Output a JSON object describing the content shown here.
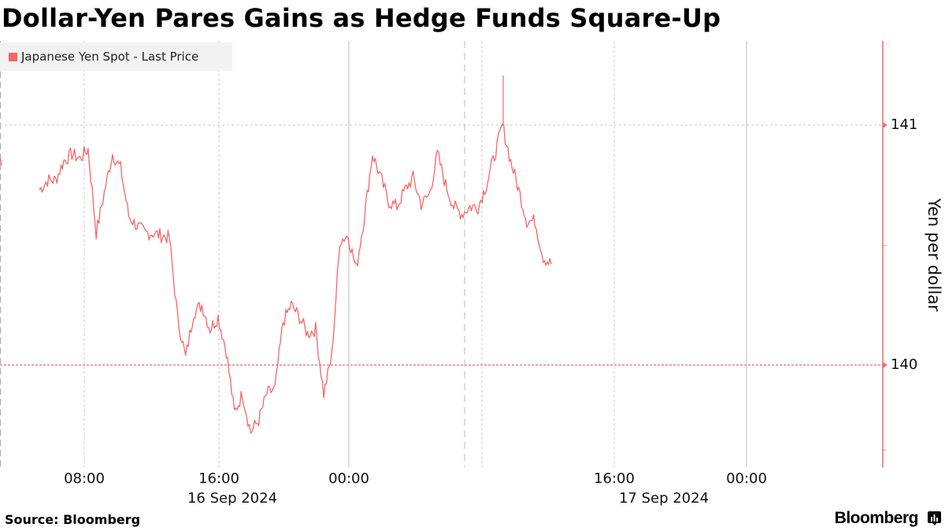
{
  "title": "Dollar-Yen Pares Gains as Hedge Funds Square-Up",
  "legend": {
    "label": "Japanese Yen Spot - Last Price",
    "color": "#f76565"
  },
  "x_axis": {
    "ticks": [
      {
        "label": "08:00",
        "x": 107
      },
      {
        "label": "16:00",
        "x": 278
      },
      {
        "label": "00:00",
        "x": 443
      },
      {
        "label": "16:00",
        "x": 780
      },
      {
        "label": "00:00",
        "x": 948
      }
    ],
    "dates": [
      {
        "label": "16 Sep 2024",
        "x": 295
      },
      {
        "label": "17 Sep 2024",
        "x": 843
      }
    ]
  },
  "y_axis": {
    "title": "Yen per dollar",
    "ticks": [
      {
        "label": "141",
        "value": 141
      },
      {
        "label": "140",
        "value": 140
      }
    ]
  },
  "footer": {
    "source": "Source: Bloomberg",
    "brand": "Bloomberg"
  },
  "chart_data": {
    "type": "line",
    "title": "Dollar-Yen Pares Gains as Hedge Funds Square-Up",
    "xlabel": "",
    "ylabel": "Yen per dollar",
    "ylim": [
      139.57,
      141.35
    ],
    "legend": [
      "Japanese Yen Spot - Last Price"
    ],
    "legend_position": "top-left",
    "grid": true,
    "reference_line": {
      "value": 140,
      "style": "red dashed"
    },
    "x_tick_labels": [
      "08:00",
      "16:00",
      "00:00",
      "16:00",
      "00:00"
    ],
    "x_date_labels": [
      "16 Sep 2024",
      "17 Sep 2024"
    ],
    "series": [
      {
        "name": "Japanese Yen Spot - Last Price",
        "x": [
          "16 Sep 05:00",
          "05:30",
          "06:00",
          "06:30",
          "07:00",
          "07:30",
          "08:00",
          "08:30",
          "09:00",
          "09:30",
          "10:00",
          "10:30",
          "11:00",
          "11:30",
          "12:00",
          "12:30",
          "13:00",
          "13:30",
          "14:00",
          "14:30",
          "15:00",
          "15:30",
          "16:00",
          "16:30",
          "17:00",
          "17:30",
          "18:00",
          "18:30",
          "19:00",
          "19:30",
          "20:00",
          "20:30",
          "21:00",
          "21:30",
          "22:00",
          "22:30",
          "23:00",
          "23:30",
          "17 Sep 00:00",
          "00:30",
          "01:00",
          "01:30",
          "02:00",
          "02:30",
          "03:00",
          "03:30",
          "04:00",
          "04:30",
          "05:00",
          "05:30",
          "06:00",
          "06:30",
          "07:00",
          "07:30",
          "08:00",
          "08:30",
          "09:00",
          "09:30",
          "10:00",
          "10:30",
          "11:00",
          "11:30",
          "12:00",
          "12:30"
        ],
        "values": [
          140.73,
          140.77,
          140.77,
          140.85,
          140.88,
          140.86,
          140.9,
          140.55,
          140.72,
          140.88,
          140.82,
          140.62,
          140.58,
          140.55,
          140.55,
          140.54,
          140.53,
          140.2,
          140.03,
          140.22,
          140.25,
          140.15,
          140.2,
          140.06,
          139.8,
          139.88,
          139.72,
          139.77,
          139.88,
          139.9,
          140.18,
          140.25,
          140.2,
          140.13,
          140.15,
          139.88,
          140.04,
          140.52,
          140.54,
          140.4,
          140.62,
          140.88,
          140.78,
          140.68,
          140.66,
          140.73,
          140.78,
          140.67,
          140.71,
          140.88,
          140.75,
          140.66,
          140.63,
          140.66,
          140.66,
          140.75,
          140.87,
          141.0,
          140.85,
          140.73,
          140.6,
          140.6,
          140.45,
          140.42
        ]
      }
    ]
  }
}
